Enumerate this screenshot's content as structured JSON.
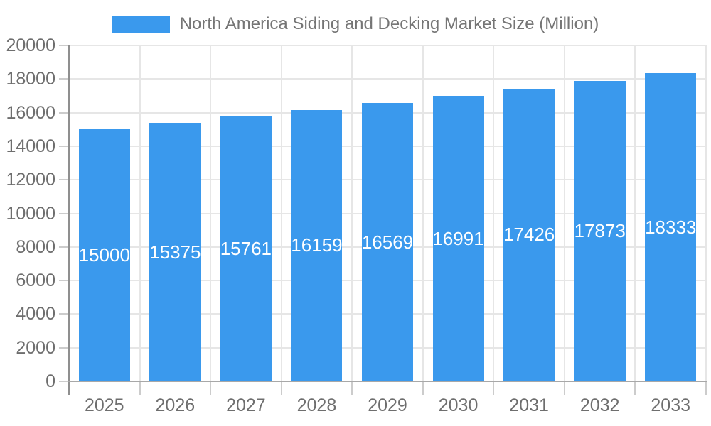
{
  "chart_data": {
    "type": "bar",
    "title": "North America Siding and Decking Market Size (Million)",
    "categories": [
      "2025",
      "2026",
      "2027",
      "2028",
      "2029",
      "2030",
      "2031",
      "2032",
      "2033"
    ],
    "values": [
      15000,
      15375,
      15761,
      16159,
      16569,
      16991,
      17426,
      17873,
      18333
    ],
    "xlabel": "",
    "ylabel": "",
    "ylim": [
      0,
      20000
    ],
    "y_ticks": [
      0,
      2000,
      4000,
      6000,
      8000,
      10000,
      12000,
      14000,
      16000,
      18000,
      20000
    ],
    "grid": true,
    "legend_position": "top",
    "data_labels": "inside-center"
  },
  "legend": {
    "label": "North America Siding and Decking Market Size (Million)"
  },
  "colors": {
    "bar": "#3a99ed",
    "legend_text": "#757575",
    "axis_label": "#6e6e6e",
    "gridline": "#e6e6e6",
    "axis_line_y": "#8f8f8f",
    "axis_line_x": "#a8a8a8",
    "tick": "#cccccc",
    "data_label": "#ffffff",
    "background": "#ffffff"
  }
}
